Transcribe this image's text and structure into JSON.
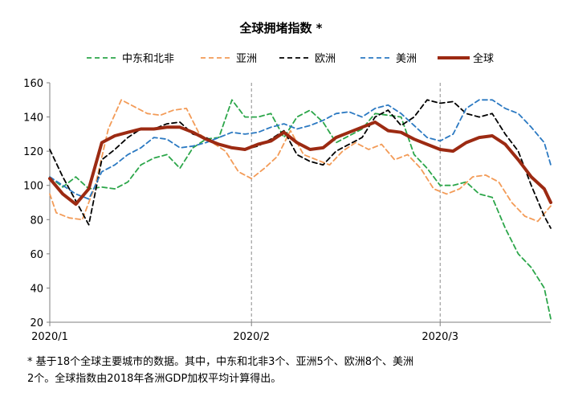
{
  "chart_data": {
    "type": "line",
    "title": "全球拥堵指数 *",
    "xlabel": "",
    "ylabel": "",
    "ylim": [
      20,
      160
    ],
    "yticks": [
      20,
      40,
      60,
      80,
      100,
      120,
      140,
      160
    ],
    "x_tick_labels": [
      "2020/1",
      "2020/2",
      "2020/3"
    ],
    "x_tick_positions": [
      0,
      31,
      60
    ],
    "x_range": [
      0,
      77
    ],
    "vertical_dashed_lines_at": [
      31,
      60
    ],
    "legend_position": "top",
    "grid": false,
    "series": [
      {
        "name": "中东和北非",
        "color": "#2ca64a",
        "dash": "dashed",
        "width": 1.8,
        "x": [
          0,
          2,
          4,
          6,
          8,
          10,
          12,
          14,
          16,
          18,
          20,
          22,
          24,
          26,
          28,
          30,
          32,
          34,
          36,
          38,
          40,
          42,
          44,
          46,
          48,
          50,
          52,
          54,
          56,
          58,
          60,
          62,
          64,
          66,
          68,
          70,
          72,
          74,
          76,
          77
        ],
        "y": [
          105,
          99,
          105,
          98,
          99,
          98,
          102,
          112,
          116,
          118,
          110,
          122,
          127,
          128,
          150,
          140,
          140,
          142,
          128,
          140,
          144,
          137,
          125,
          129,
          133,
          142,
          141,
          140,
          118,
          110,
          100,
          100,
          102,
          95,
          93,
          75,
          60,
          52,
          40,
          22
        ]
      },
      {
        "name": "亚洲",
        "color": "#f39b57",
        "dash": "dashed",
        "width": 1.8,
        "x": [
          0,
          1,
          3,
          5,
          7,
          9,
          11,
          13,
          15,
          17,
          19,
          21,
          23,
          25,
          27,
          29,
          31,
          33,
          35,
          37,
          39,
          41,
          43,
          45,
          47,
          49,
          51,
          53,
          55,
          57,
          59,
          61,
          63,
          65,
          67,
          69,
          71,
          73,
          75,
          77
        ],
        "y": [
          95,
          84,
          81,
          80,
          100,
          133,
          150,
          146,
          142,
          141,
          144,
          145,
          130,
          125,
          120,
          108,
          104,
          110,
          117,
          132,
          118,
          115,
          112,
          120,
          125,
          121,
          124,
          115,
          118,
          110,
          98,
          95,
          98,
          105,
          106,
          102,
          90,
          82,
          79,
          88
        ]
      },
      {
        "name": "欧洲",
        "color": "#000000",
        "dash": "dashed",
        "width": 1.8,
        "x": [
          0,
          2,
          4,
          6,
          8,
          10,
          12,
          14,
          16,
          18,
          20,
          22,
          24,
          26,
          28,
          30,
          32,
          34,
          36,
          38,
          40,
          42,
          44,
          46,
          48,
          50,
          52,
          54,
          56,
          58,
          60,
          62,
          64,
          66,
          68,
          70,
          72,
          74,
          76,
          77
        ],
        "y": [
          121,
          105,
          91,
          77,
          115,
          121,
          128,
          133,
          133,
          136,
          137,
          130,
          128,
          124,
          122,
          121,
          123,
          127,
          132,
          118,
          114,
          112,
          120,
          124,
          128,
          140,
          144,
          135,
          140,
          150,
          148,
          149,
          142,
          140,
          142,
          130,
          120,
          100,
          82,
          75
        ]
      },
      {
        "name": "美洲",
        "color": "#2b79c2",
        "dash": "dashed",
        "width": 1.8,
        "x": [
          0,
          2,
          4,
          6,
          8,
          10,
          12,
          14,
          16,
          18,
          20,
          22,
          24,
          26,
          28,
          30,
          32,
          34,
          36,
          38,
          40,
          42,
          44,
          46,
          48,
          50,
          52,
          54,
          56,
          58,
          60,
          62,
          64,
          66,
          68,
          70,
          72,
          74,
          76,
          77
        ],
        "y": [
          105,
          100,
          95,
          92,
          108,
          112,
          118,
          122,
          128,
          127,
          122,
          123,
          125,
          128,
          131,
          130,
          131,
          134,
          136,
          133,
          135,
          138,
          142,
          143,
          140,
          145,
          147,
          142,
          135,
          128,
          126,
          130,
          145,
          150,
          150,
          145,
          142,
          134,
          125,
          112
        ]
      },
      {
        "name": "全球",
        "color": "#9c2a12",
        "dash": "solid",
        "width": 4,
        "x": [
          0,
          2,
          4,
          6,
          8,
          10,
          12,
          14,
          16,
          18,
          20,
          22,
          24,
          26,
          28,
          30,
          32,
          34,
          36,
          38,
          40,
          42,
          44,
          46,
          48,
          50,
          52,
          54,
          56,
          58,
          60,
          62,
          64,
          66,
          68,
          70,
          72,
          74,
          76,
          77
        ],
        "y": [
          104,
          95,
          89,
          98,
          125,
          129,
          131,
          133,
          133,
          134,
          134,
          131,
          127,
          124,
          122,
          121,
          124,
          126,
          131,
          125,
          121,
          122,
          128,
          131,
          134,
          137,
          132,
          131,
          127,
          124,
          121,
          120,
          125,
          128,
          129,
          124,
          115,
          105,
          98,
          90
        ]
      }
    ]
  },
  "footnote": {
    "line1": "* 基于18个全球主要城市的数据。其中，中东和北非3个、亚洲5个、欧洲8个、美洲",
    "line2": "2个。全球指数由2018年各洲GDP加权平均计算得出。"
  }
}
